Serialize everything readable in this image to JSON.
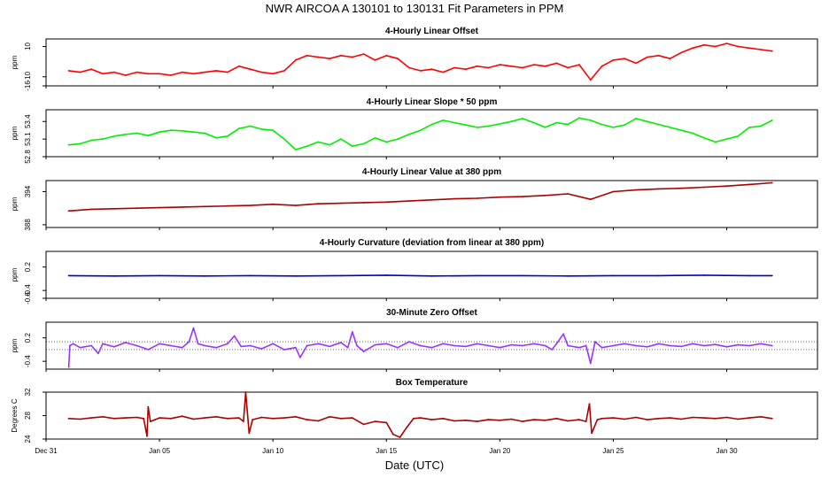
{
  "figure": {
    "title": "NWR   AIRCOA A   130101 to 130131   Fit Parameters in PPM",
    "xlabel": "Date (UTC)"
  },
  "chart_data": [
    {
      "type": "line",
      "title": "4-Hourly Linear Offset",
      "ylabel": "ppm",
      "ylim": [
        -16,
        15
      ],
      "yticks": [
        -16,
        -10,
        10
      ],
      "ytick_labels": [
        "-16",
        "-10",
        "10"
      ],
      "color": "#ff0000",
      "series": [
        {
          "x": [
            1,
            1.5,
            2,
            2.5,
            3,
            3.5,
            4,
            4.5,
            5,
            5.5,
            6,
            6.5,
            7,
            7.5,
            8,
            8.5,
            9,
            9.5,
            10,
            10.5,
            11,
            11.5,
            12,
            12.5,
            13,
            13.5,
            14,
            14.5,
            15,
            15.5,
            16,
            16.5,
            17,
            17.5,
            18,
            18.5,
            19,
            19.5,
            20,
            20.5,
            21,
            21.5,
            22,
            22.5,
            23,
            23.5,
            24,
            24.5,
            25,
            25.5,
            26,
            26.5,
            27,
            27.5,
            28,
            28.5,
            29,
            29.5,
            30,
            30.5,
            31,
            31.5,
            32
          ],
          "values": [
            -6,
            -7,
            -5,
            -8,
            -7,
            -9,
            -7,
            -8,
            -8,
            -9,
            -7,
            -8,
            -7,
            -6,
            -7,
            -3,
            -5,
            -7,
            -8,
            -6,
            1,
            4,
            3,
            2,
            4,
            3,
            5,
            1,
            4,
            2,
            -4,
            -6,
            -5,
            -7,
            -4,
            -5,
            -3,
            -4,
            -2,
            -3,
            -4,
            -2,
            -3,
            -1,
            -4,
            -2,
            -12,
            -3,
            1,
            2,
            -1,
            3,
            4,
            2,
            6,
            9,
            11,
            10,
            12,
            10,
            9,
            8,
            7
          ]
        }
      ]
    },
    {
      "type": "line",
      "title": "4-Hourly Linear Slope * 50 ppm",
      "ylabel": "ppm",
      "ylim": [
        52.8,
        53.6
      ],
      "yticks": [
        52.8,
        53.1,
        53.4
      ],
      "ytick_labels": [
        "52.8",
        "53.1",
        "53.4"
      ],
      "color": "#00ee00",
      "series": [
        {
          "x": [
            1,
            1.5,
            2,
            2.5,
            3,
            3.5,
            4,
            4.5,
            5,
            5.5,
            6,
            6.5,
            7,
            7.5,
            8,
            8.5,
            9,
            9.5,
            10,
            10.5,
            11,
            11.5,
            12,
            12.5,
            13,
            13.5,
            14,
            14.5,
            15,
            15.5,
            16,
            16.5,
            17,
            17.5,
            18,
            18.5,
            19,
            19.5,
            20,
            20.5,
            21,
            21.5,
            22,
            22.5,
            23,
            23.5,
            24,
            24.5,
            25,
            25.5,
            26,
            26.5,
            27,
            27.5,
            28,
            28.5,
            29,
            29.5,
            30,
            30.5,
            31,
            31.5,
            32
          ],
          "values": [
            53.0,
            53.02,
            53.08,
            53.1,
            53.15,
            53.18,
            53.2,
            53.16,
            53.22,
            53.25,
            53.24,
            53.22,
            53.2,
            53.12,
            53.15,
            53.28,
            53.32,
            53.27,
            53.25,
            53.1,
            52.92,
            52.98,
            53.05,
            53.0,
            53.1,
            52.98,
            53.02,
            53.12,
            53.05,
            53.1,
            53.18,
            53.25,
            53.35,
            53.42,
            53.38,
            53.34,
            53.3,
            53.32,
            53.36,
            53.4,
            53.45,
            53.38,
            53.3,
            53.38,
            53.35,
            53.46,
            53.42,
            53.35,
            53.3,
            53.34,
            53.45,
            53.4,
            53.35,
            53.3,
            53.25,
            53.2,
            53.12,
            53.05,
            53.1,
            53.15,
            53.3,
            53.32,
            53.42
          ]
        }
      ]
    },
    {
      "type": "line",
      "title": "4-Hourly Linear Value at 380 ppm",
      "ylabel": "ppm",
      "ylim": [
        387.5,
        396
      ],
      "yticks": [
        388,
        394
      ],
      "ytick_labels": [
        "388",
        "394"
      ],
      "color": "#aa0000",
      "series": [
        {
          "x": [
            1,
            2,
            3,
            4,
            5,
            6,
            7,
            8,
            9,
            10,
            11,
            12,
            13,
            14,
            15,
            16,
            17,
            18,
            19,
            20,
            21,
            22,
            23,
            24,
            25,
            26,
            27,
            28,
            29,
            30,
            31,
            32
          ],
          "values": [
            390.5,
            390.8,
            390.9,
            391.0,
            391.1,
            391.2,
            391.3,
            391.4,
            391.5,
            391.7,
            391.5,
            391.8,
            391.9,
            392.0,
            392.1,
            392.3,
            392.5,
            392.7,
            392.8,
            393.0,
            393.1,
            393.3,
            393.6,
            392.6,
            394.0,
            394.3,
            394.5,
            394.6,
            394.8,
            395.0,
            395.3,
            395.6
          ]
        }
      ]
    },
    {
      "type": "line",
      "title": "4-Hourly Curvature (deviation from linear at 380 ppm)",
      "ylabel": "ppm",
      "ylim": [
        -0.6,
        0.6
      ],
      "yticks": [
        -0.6,
        -0.4,
        0.2
      ],
      "ytick_labels": [
        "-0.6",
        "-0.4",
        "0.2"
      ],
      "color": "#0000cc",
      "series": [
        {
          "x": [
            1,
            3,
            5,
            7,
            9,
            11,
            13,
            15,
            17,
            19,
            21,
            23,
            25,
            27,
            29,
            31,
            32
          ],
          "values": [
            -0.02,
            -0.03,
            -0.02,
            -0.03,
            -0.02,
            -0.03,
            -0.02,
            -0.01,
            -0.03,
            -0.02,
            -0.02,
            -0.03,
            -0.02,
            -0.02,
            -0.01,
            -0.02,
            -0.02
          ]
        }
      ]
    },
    {
      "type": "line",
      "title": "30-Minute Zero Offset",
      "ylabel": "ppm",
      "ylim": [
        -0.6,
        0.6
      ],
      "yticks": [
        -0.4,
        0.2
      ],
      "ytick_labels": [
        "-0.4",
        "0.2"
      ],
      "reference_lines": [
        0.1,
        -0.1
      ],
      "color": "#9933ff",
      "series": [
        {
          "x": [
            1,
            1.05,
            1.2,
            1.5,
            2,
            2.3,
            2.5,
            3,
            3.5,
            4,
            4.5,
            5,
            5.5,
            6,
            6.3,
            6.5,
            6.7,
            7,
            7.5,
            8,
            8.3,
            8.6,
            9,
            9.5,
            10,
            10.5,
            11,
            11.2,
            11.5,
            12,
            12.5,
            13,
            13.3,
            13.5,
            13.7,
            14,
            14.5,
            15,
            15.5,
            16,
            16.5,
            17,
            17.5,
            18,
            18.5,
            19,
            19.5,
            20,
            20.5,
            21,
            21.5,
            22,
            22.3,
            22.5,
            22.8,
            23,
            23.5,
            23.8,
            24,
            24.2,
            24.5,
            25,
            25.5,
            26,
            26.5,
            27,
            27.5,
            28,
            28.5,
            29,
            29.5,
            30,
            30.5,
            31,
            31.5,
            32
          ],
          "values": [
            -0.55,
            0.0,
            0.05,
            -0.05,
            0.0,
            -0.2,
            0.05,
            -0.03,
            0.08,
            0.0,
            -0.1,
            0.05,
            0.0,
            -0.05,
            0.1,
            0.45,
            0.05,
            0.0,
            -0.05,
            0.05,
            0.25,
            -0.02,
            0.0,
            -0.08,
            0.05,
            -0.1,
            -0.05,
            -0.3,
            0.0,
            0.05,
            -0.02,
            0.08,
            -0.05,
            0.35,
            0.0,
            -0.15,
            0.02,
            0.05,
            -0.05,
            0.1,
            0.0,
            -0.05,
            0.05,
            0.0,
            -0.02,
            0.05,
            0.0,
            -0.05,
            0.02,
            0.0,
            0.05,
            0.0,
            -0.1,
            0.05,
            0.3,
            0.0,
            -0.05,
            0.0,
            -0.45,
            0.1,
            -0.05,
            0.0,
            0.05,
            0.0,
            -0.03,
            0.05,
            0.0,
            -0.02,
            0.05,
            0.0,
            0.03,
            -0.03,
            0.02,
            0.0,
            0.05,
            0.0
          ]
        }
      ]
    },
    {
      "type": "line",
      "title": "Box Temperature",
      "ylabel": "Degrees C",
      "ylim": [
        24,
        32
      ],
      "yticks": [
        24,
        28,
        32
      ],
      "ytick_labels": [
        "24",
        "28",
        "32"
      ],
      "color": "#aa0000",
      "series": [
        {
          "x": [
            1,
            1.5,
            2,
            2.5,
            3,
            3.5,
            4,
            4.3,
            4.45,
            4.5,
            4.6,
            4.8,
            5,
            5.5,
            6,
            6.5,
            7,
            7.5,
            8,
            8.5,
            8.7,
            8.8,
            8.95,
            9.1,
            9.5,
            10,
            10.5,
            11,
            11.5,
            12,
            12.5,
            13,
            13.5,
            14,
            14.5,
            15,
            15.3,
            15.6,
            15.9,
            16.2,
            16.5,
            17,
            17.5,
            18,
            18.5,
            19,
            19.5,
            20,
            20.5,
            21,
            21.5,
            22,
            22.5,
            23,
            23.5,
            23.8,
            23.95,
            24.05,
            24.3,
            24.5,
            25,
            25.5,
            26,
            26.5,
            27,
            27.5,
            28,
            28.5,
            29,
            29.5,
            30,
            30.5,
            31,
            31.5,
            32
          ],
          "values": [
            27.5,
            27.4,
            27.6,
            27.8,
            27.5,
            27.6,
            27.7,
            27.5,
            24.5,
            29.5,
            27.0,
            27.3,
            27.6,
            27.5,
            27.9,
            27.4,
            27.6,
            27.8,
            27.5,
            27.6,
            27.0,
            32.0,
            25.0,
            27.3,
            27.7,
            27.5,
            27.6,
            27.8,
            27.3,
            27.1,
            27.8,
            27.5,
            27.6,
            26.5,
            27.0,
            26.8,
            24.8,
            24.3,
            26.0,
            27.5,
            27.6,
            27.3,
            27.5,
            27.1,
            27.2,
            27.0,
            27.3,
            27.2,
            27.4,
            27.0,
            27.3,
            27.2,
            27.5,
            27.1,
            27.3,
            27.0,
            30.0,
            25.0,
            27.3,
            27.5,
            27.6,
            27.4,
            27.7,
            27.3,
            27.5,
            27.6,
            27.4,
            27.7,
            27.6,
            27.5,
            27.7,
            27.4,
            27.6,
            27.8,
            27.5
          ]
        }
      ]
    }
  ],
  "xaxis": {
    "range_days": [
      0,
      34
    ],
    "tick_days": [
      0,
      5,
      10,
      15,
      20,
      25,
      30
    ],
    "tick_labels": [
      "Dec 31",
      "Jan 05",
      "Jan 10",
      "Jan 15",
      "Jan 20",
      "Jan 25",
      "Jan 30"
    ]
  }
}
